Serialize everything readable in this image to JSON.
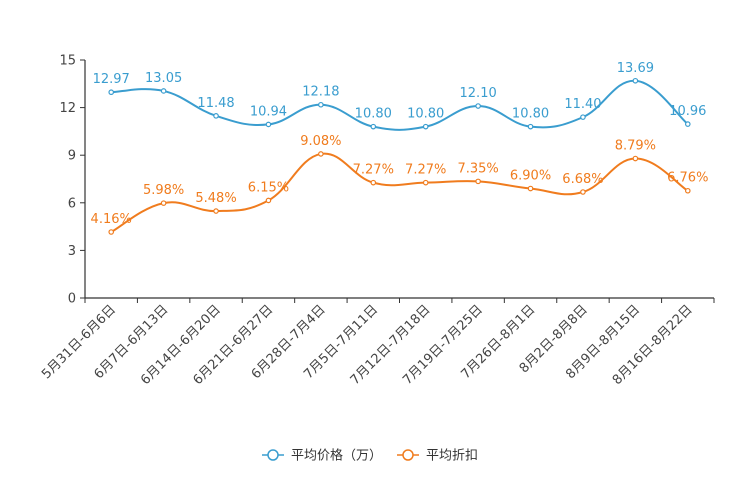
{
  "chart_data": {
    "type": "line",
    "title": "",
    "xlabel": "",
    "ylabel": "",
    "ylim": [
      0,
      15
    ],
    "yticks": [
      0,
      3,
      6,
      9,
      12,
      15
    ],
    "grid": false,
    "legend_position": "bottom-center",
    "categories": [
      "5月31日-6月6日",
      "6月7日-6月13日",
      "6月14日-6月20日",
      "6月21日-6月27日",
      "6月28日-7月4日",
      "7月5日-7月11日",
      "7月12日-7月18日",
      "7月19日-7月25日",
      "7月26日-8月1日",
      "8月2日-8月8日",
      "8月9日-8月15日",
      "8月16日-8月22日"
    ],
    "series": [
      {
        "name": "平均价格（万）",
        "color": "#3a9dcf",
        "values": [
          12.97,
          13.05,
          11.48,
          10.94,
          12.18,
          10.8,
          10.8,
          12.1,
          10.8,
          11.4,
          13.69,
          10.96
        ],
        "labels": [
          "12.97",
          "13.05",
          "11.48",
          "10.94",
          "12.18",
          "10.80",
          "10.80",
          "12.10",
          "10.80",
          "11.40",
          "13.69",
          "10.96"
        ]
      },
      {
        "name": "平均折扣",
        "color": "#f07c1e",
        "values": [
          4.16,
          5.98,
          5.48,
          6.15,
          9.08,
          7.27,
          7.27,
          7.35,
          6.9,
          6.68,
          8.79,
          6.76
        ],
        "labels": [
          "4.16%",
          "5.98%",
          "5.48%",
          "6.15%",
          "9.08%",
          "7.27%",
          "7.27%",
          "7.35%",
          "6.90%",
          "6.68%",
          "8.79%",
          "6.76%"
        ]
      }
    ]
  }
}
